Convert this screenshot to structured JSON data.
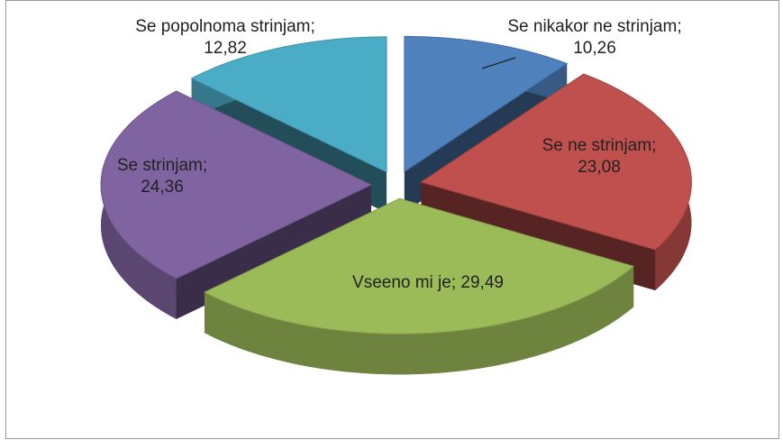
{
  "chart_data": {
    "type": "pie3d",
    "categories": [
      "Se nikakor ne strinjam",
      "Se ne strinjam",
      "Vseeno mi je",
      "Se strinjam",
      "Se popolnoma strinjam"
    ],
    "values": [
      10.26,
      23.08,
      29.49,
      24.36,
      12.82
    ],
    "value_labels": [
      "10,26",
      "23,08",
      "29,49",
      "24,36",
      "12,82"
    ],
    "label_separator": "; ",
    "colors": [
      "#4f81bd",
      "#c0504d",
      "#9bbb59",
      "#8064a2",
      "#4bacc6"
    ]
  }
}
